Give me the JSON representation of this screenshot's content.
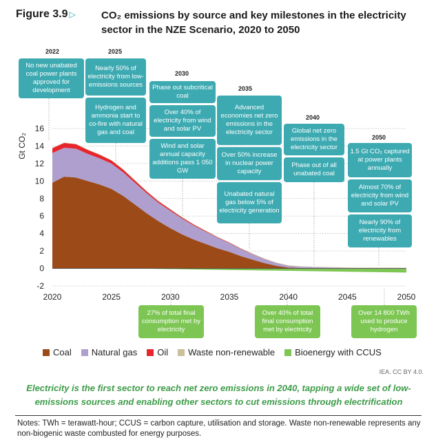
{
  "figure": {
    "label": "Figure 3.9",
    "title": "CO₂ emissions by source and key milestones in the electricity sector in the NZE Scenario, 2020 to 2050"
  },
  "chart_data": {
    "type": "area",
    "title": "CO₂ emissions by source and key milestones in the electricity sector in the NZE Scenario, 2020 to 2050",
    "ylabel": "Gt CO₂",
    "xlabel": "",
    "xlim": [
      2020,
      2050
    ],
    "ylim": [
      -2,
      16
    ],
    "x_ticks": [
      "2020",
      "2025",
      "2030",
      "2035",
      "2040",
      "2045",
      "2050"
    ],
    "y_ticks": [
      "-2",
      "0",
      "2",
      "4",
      "6",
      "8",
      "10",
      "12",
      "14",
      "16"
    ],
    "x": [
      2020,
      2021,
      2022,
      2023,
      2024,
      2025,
      2026,
      2027,
      2028,
      2029,
      2030,
      2031,
      2032,
      2033,
      2034,
      2035,
      2036,
      2037,
      2038,
      2039,
      2040,
      2041,
      2042,
      2043,
      2044,
      2045,
      2046,
      2047,
      2048,
      2049,
      2050
    ],
    "series": [
      {
        "name": "Coal",
        "color": "#9c4a17",
        "values": [
          9.8,
          10.5,
          10.4,
          10.0,
          9.6,
          9.1,
          8.3,
          7.3,
          6.3,
          5.4,
          4.6,
          3.9,
          3.3,
          2.8,
          2.3,
          1.9,
          1.4,
          1.0,
          0.6,
          0.3,
          0.1,
          0.05,
          0.03,
          0.02,
          0.01,
          0.0,
          0.0,
          0.0,
          0.0,
          0.0,
          0.0
        ]
      },
      {
        "name": "Natural gas",
        "color": "#ae9fce",
        "values": [
          3.4,
          3.3,
          3.3,
          3.1,
          3.0,
          2.9,
          2.7,
          2.5,
          2.3,
          2.1,
          2.0,
          1.8,
          1.6,
          1.4,
          1.2,
          1.0,
          0.8,
          0.6,
          0.45,
          0.3,
          0.2,
          0.15,
          0.12,
          0.1,
          0.08,
          0.06,
          0.05,
          0.05,
          0.04,
          0.04,
          0.03
        ]
      },
      {
        "name": "Oil",
        "color": "#e8242c",
        "values": [
          0.55,
          0.55,
          0.5,
          0.45,
          0.4,
          0.35,
          0.3,
          0.25,
          0.2,
          0.17,
          0.14,
          0.12,
          0.1,
          0.08,
          0.06,
          0.05,
          0.04,
          0.03,
          0.02,
          0.01,
          0.01,
          0.0,
          0.0,
          0.0,
          0.0,
          0.0,
          0.0,
          0.0,
          0.0,
          0.0,
          0.0
        ]
      },
      {
        "name": "Waste non-renewable",
        "color": "#c9bf9a",
        "values": [
          0.05,
          0.05,
          0.05,
          0.05,
          0.05,
          0.05,
          0.05,
          0.05,
          0.05,
          0.05,
          0.05,
          0.05,
          0.05,
          0.05,
          0.05,
          0.05,
          0.05,
          0.05,
          0.05,
          0.05,
          0.05,
          0.05,
          0.05,
          0.05,
          0.05,
          0.05,
          0.05,
          0.05,
          0.05,
          0.05,
          0.05
        ]
      },
      {
        "name": "Bioenergy with CCUS",
        "color": "#7dc653",
        "values": [
          0.0,
          0.0,
          0.0,
          0.0,
          0.0,
          0.0,
          -0.01,
          -0.02,
          -0.03,
          -0.05,
          -0.07,
          -0.09,
          -0.11,
          -0.13,
          -0.15,
          -0.17,
          -0.19,
          -0.21,
          -0.23,
          -0.25,
          -0.27,
          -0.29,
          -0.31,
          -0.33,
          -0.35,
          -0.37,
          -0.39,
          -0.41,
          -0.43,
          -0.45,
          -0.47
        ]
      }
    ],
    "legend_position": "bottom"
  },
  "milestones": {
    "years": [
      "2022",
      "2025",
      "2030",
      "2035",
      "2040",
      "2050"
    ],
    "boxes": [
      "No new unabated coal power plants approved for development",
      "Nearly 50% of electricity from low-emissions sources",
      "Hydrogen and ammonia start to co-fire with natural gas and coal",
      "Phase out subcritical coal",
      "Over 40% of electricity from wind and solar PV",
      "Wind and solar annual capacity additions pass 1 050 GW",
      "Advanced economies net zero emissions in the electricity sector",
      "Over 50% increase in nuclear power capacity",
      "Unabated natural gas below 5% of electricity generation",
      "Global net zero emissions in the electricity sector",
      "Phase out of all unabated coal",
      "1.5 Gt CO₂ captured at power plants annually",
      "Almost 70% of electricity from wind and solar PV",
      "Nearly 90% of electricity from renewables"
    ],
    "green_boxes": [
      "27% of total final consumption met by electricity",
      "Over 40% of total final consumption met by electricity",
      "Over 14 800 TWh used to produce hydrogen"
    ]
  },
  "credit": "IEA. CC BY 4.0.",
  "takeaway": "Electricity is the first sector to reach net zero emissions in 2040, tapping a wide set of low-emissions sources and enabling other sectors to cut emissions through electrification",
  "notes": "Notes: TWh = terawatt-hour; CCUS = carbon capture, utilisation and storage. Waste non-renewable represents any non-biogenic waste combusted for energy purposes."
}
